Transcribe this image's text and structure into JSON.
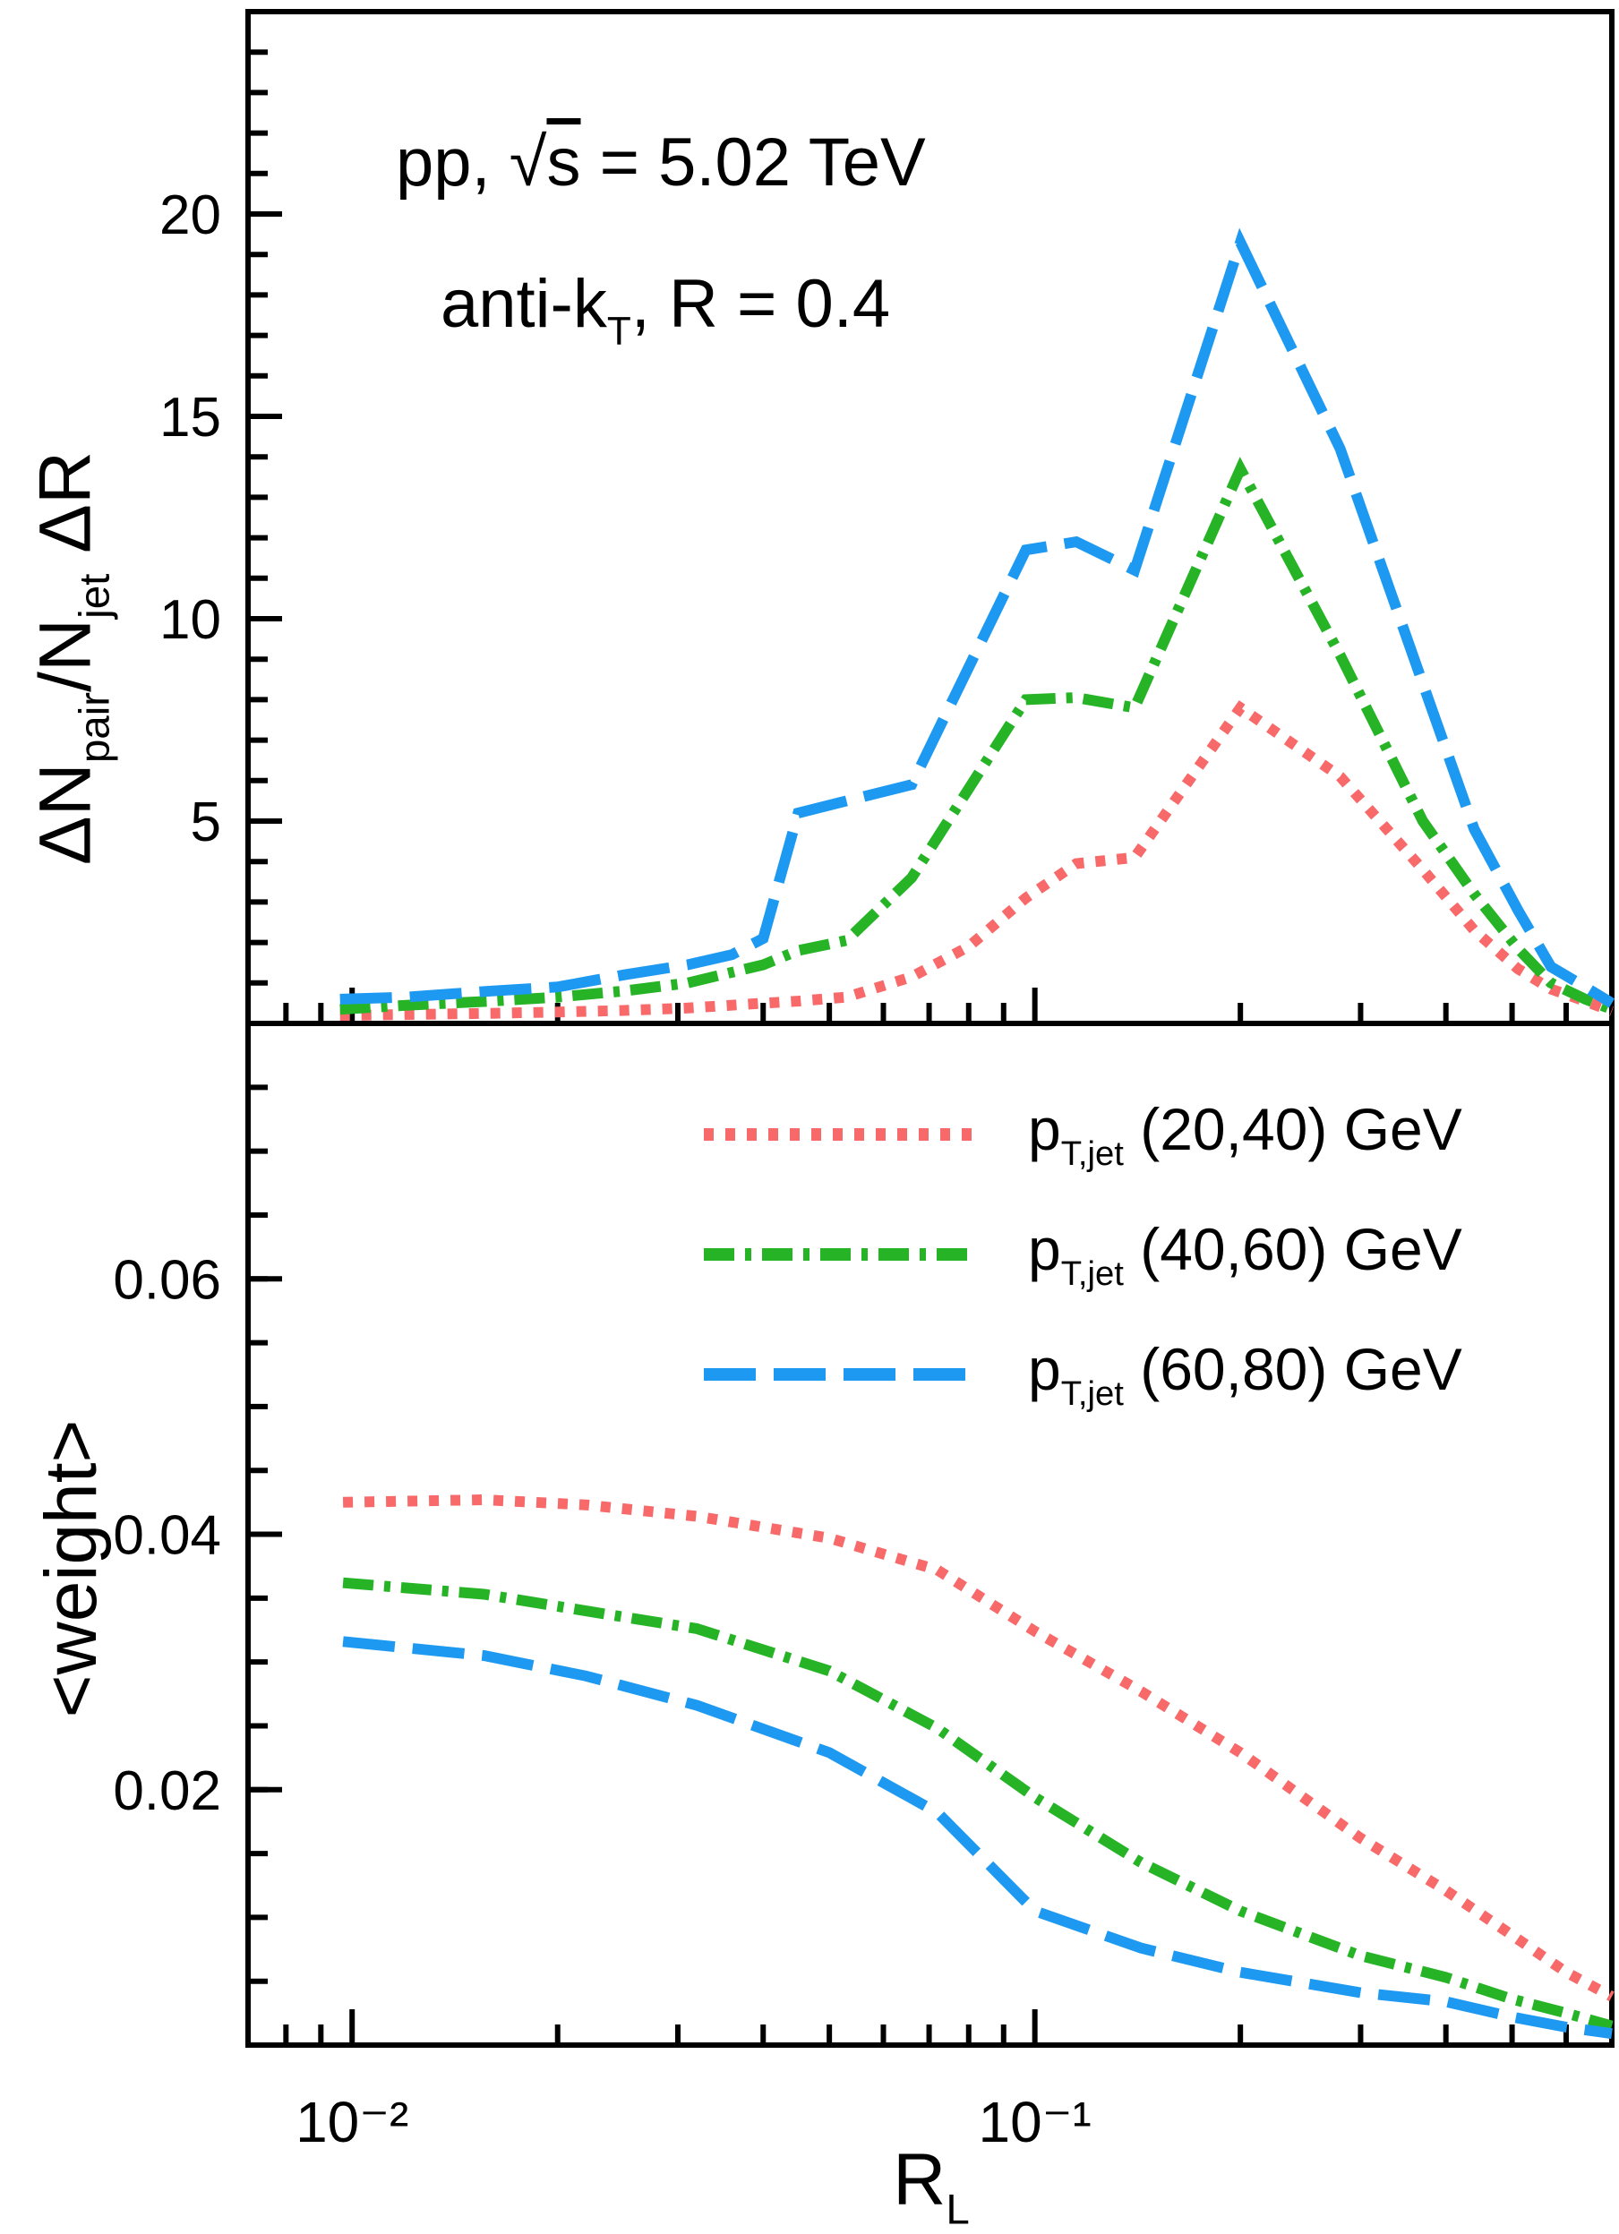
{
  "figure_bg": "#ffffff",
  "frame_color": "#000000",
  "titles": {
    "line1": [
      {
        "t": "pp, √"
      },
      {
        "ov": "s"
      },
      {
        "t": " = 5.02 TeV"
      }
    ],
    "line2": [
      {
        "t": "anti-k"
      },
      {
        "sub": "T"
      },
      {
        "t": ", R = 0.4"
      }
    ]
  },
  "axes": {
    "x": {
      "scale": "log",
      "min": 0.00704,
      "max": 0.7,
      "title": [
        {
          "t": "R"
        },
        {
          "sub": "L"
        }
      ],
      "major_ticks": [
        {
          "v": 0.01,
          "label": "10⁻²"
        },
        {
          "v": 0.1,
          "label": "10⁻¹"
        }
      ],
      "minor_ticks": [
        0.008,
        0.009,
        0.02,
        0.03,
        0.04,
        0.05,
        0.06,
        0.07,
        0.08,
        0.09,
        0.2,
        0.3,
        0.4,
        0.5,
        0.6,
        0.7
      ]
    },
    "y_top": {
      "min": 0,
      "max": 25,
      "title": [
        {
          "t": "ΔN"
        },
        {
          "sub": "pair"
        },
        {
          "t": "/N"
        },
        {
          "sub": "jet"
        },
        {
          "t": " ΔR"
        }
      ],
      "major_ticks": [
        {
          "v": 5,
          "label": "5"
        },
        {
          "v": 10,
          "label": "10"
        },
        {
          "v": 15,
          "label": "15"
        },
        {
          "v": 20,
          "label": "20"
        }
      ],
      "minor_step": 1
    },
    "y_bottom": {
      "min": 0,
      "max": 0.08,
      "title": [
        {
          "t": "<weight>"
        }
      ],
      "major_ticks": [
        {
          "v": 0.02,
          "label": "0.02"
        },
        {
          "v": 0.04,
          "label": "0.04"
        },
        {
          "v": 0.06,
          "label": "0.06"
        }
      ],
      "minor_step": 0.005
    }
  },
  "legend": [
    {
      "label": [
        {
          "t": "p"
        },
        {
          "sub": "T,jet"
        },
        {
          "t": " (20,40) GeV"
        }
      ],
      "color": "#f8696a",
      "dash": [
        11,
        13
      ],
      "series": "pt_20_40"
    },
    {
      "label": [
        {
          "t": "p"
        },
        {
          "sub": "T,jet"
        },
        {
          "t": " (40,60) GeV"
        }
      ],
      "color": "#26b426",
      "dash": [
        34,
        12,
        7,
        12
      ],
      "series": "pt_40_60"
    },
    {
      "label": [
        {
          "t": "p"
        },
        {
          "sub": "T,jet"
        },
        {
          "t": " (60,80) GeV"
        }
      ],
      "color": "#1e99f1",
      "dash": [
        58,
        20
      ],
      "series": "pt_60_80"
    }
  ],
  "chart_data": [
    {
      "type": "line",
      "panel": "top",
      "title": "pp, sqrt(s) = 5.02 TeV ; anti-kT, R = 0.4",
      "xlabel": "R_L",
      "ylabel": "dN_pair/N_jet dR",
      "xscale": "log",
      "xlim": [
        0.00704,
        0.7
      ],
      "ylim": [
        0,
        25
      ],
      "grid": false,
      "legend_position": "none",
      "series": [
        {
          "name": "pT,jet (20,40) GeV",
          "color": "#f8696a",
          "linestyle": "dotted",
          "dash": [
            11,
            13
          ],
          "x": [
            0.0096,
            0.012,
            0.016,
            0.02,
            0.025,
            0.031,
            0.04,
            0.045,
            0.053,
            0.066,
            0.08,
            0.097,
            0.115,
            0.14,
            0.2,
            0.28,
            0.37,
            0.44,
            0.51,
            0.57,
            0.64,
            0.7
          ],
          "y": [
            0.2,
            0.22,
            0.25,
            0.28,
            0.32,
            0.38,
            0.5,
            0.55,
            0.65,
            1.15,
            1.9,
            3.1,
            3.95,
            4.1,
            7.8,
            6.1,
            3.8,
            2.3,
            1.35,
            0.85,
            0.55,
            0.3
          ]
        },
        {
          "name": "pT,jet (40,60) GeV",
          "color": "#26b426",
          "linestyle": "dashdot",
          "dash": [
            34,
            12,
            7,
            12
          ],
          "x": [
            0.0096,
            0.012,
            0.016,
            0.02,
            0.025,
            0.031,
            0.04,
            0.045,
            0.053,
            0.066,
            0.097,
            0.115,
            0.14,
            0.2,
            0.28,
            0.37,
            0.44,
            0.51,
            0.57,
            0.64,
            0.7
          ],
          "y": [
            0.35,
            0.45,
            0.55,
            0.65,
            0.8,
            1.0,
            1.45,
            1.8,
            2.05,
            3.6,
            8.0,
            8.05,
            7.8,
            13.7,
            9.1,
            5.0,
            3.2,
            1.85,
            1.0,
            0.6,
            0.35
          ]
        },
        {
          "name": "pT,jet (60,80) GeV",
          "color": "#1e99f1",
          "linestyle": "dashed",
          "dash": [
            58,
            20
          ],
          "x": [
            0.0096,
            0.012,
            0.016,
            0.02,
            0.025,
            0.031,
            0.036,
            0.04,
            0.045,
            0.053,
            0.066,
            0.08,
            0.097,
            0.115,
            0.14,
            0.2,
            0.28,
            0.37,
            0.44,
            0.51,
            0.57,
            0.64,
            0.7
          ],
          "y": [
            0.6,
            0.65,
            0.8,
            0.9,
            1.2,
            1.45,
            1.7,
            2.1,
            5.2,
            5.5,
            5.9,
            8.8,
            11.7,
            11.9,
            11.2,
            19.3,
            14.2,
            8.4,
            4.8,
            2.8,
            1.4,
            0.9,
            0.5
          ]
        }
      ]
    },
    {
      "type": "line",
      "panel": "bottom",
      "title": "",
      "xlabel": "R_L",
      "ylabel": "<weight>",
      "xscale": "log",
      "xlim": [
        0.00704,
        0.7
      ],
      "ylim": [
        0,
        0.08
      ],
      "grid": false,
      "legend_position": "upper right",
      "series": [
        {
          "name": "pT,jet (20,40) GeV",
          "color": "#f8696a",
          "linestyle": "dotted",
          "dash": [
            11,
            13
          ],
          "x": [
            0.0097,
            0.0156,
            0.022,
            0.032,
            0.05,
            0.072,
            0.1,
            0.143,
            0.2,
            0.3,
            0.4,
            0.5,
            0.6,
            0.7
          ],
          "y": [
            0.0425,
            0.0427,
            0.0423,
            0.0414,
            0.0397,
            0.0372,
            0.0324,
            0.0277,
            0.0229,
            0.0162,
            0.0121,
            0.0086,
            0.0057,
            0.0038
          ]
        },
        {
          "name": "pT,jet (40,60) GeV",
          "color": "#26b426",
          "linestyle": "dashdot",
          "dash": [
            34,
            12,
            7,
            12
          ],
          "x": [
            0.0097,
            0.0156,
            0.022,
            0.032,
            0.05,
            0.072,
            0.1,
            0.143,
            0.2,
            0.3,
            0.4,
            0.5,
            0.6,
            0.7
          ],
          "y": [
            0.0362,
            0.0353,
            0.034,
            0.0326,
            0.0293,
            0.0248,
            0.0194,
            0.0143,
            0.0105,
            0.007,
            0.0053,
            0.0036,
            0.0025,
            0.0015
          ]
        },
        {
          "name": "pT,jet (60,80) GeV",
          "color": "#1e99f1",
          "linestyle": "dashed",
          "dash": [
            58,
            20
          ],
          "x": [
            0.0097,
            0.0156,
            0.022,
            0.032,
            0.05,
            0.072,
            0.1,
            0.143,
            0.2,
            0.3,
            0.4,
            0.5,
            0.6,
            0.7
          ],
          "y": [
            0.0316,
            0.0305,
            0.0289,
            0.0266,
            0.0229,
            0.0182,
            0.0105,
            0.0076,
            0.0057,
            0.0041,
            0.0034,
            0.0022,
            0.0014,
            0.0009
          ]
        }
      ]
    }
  ]
}
